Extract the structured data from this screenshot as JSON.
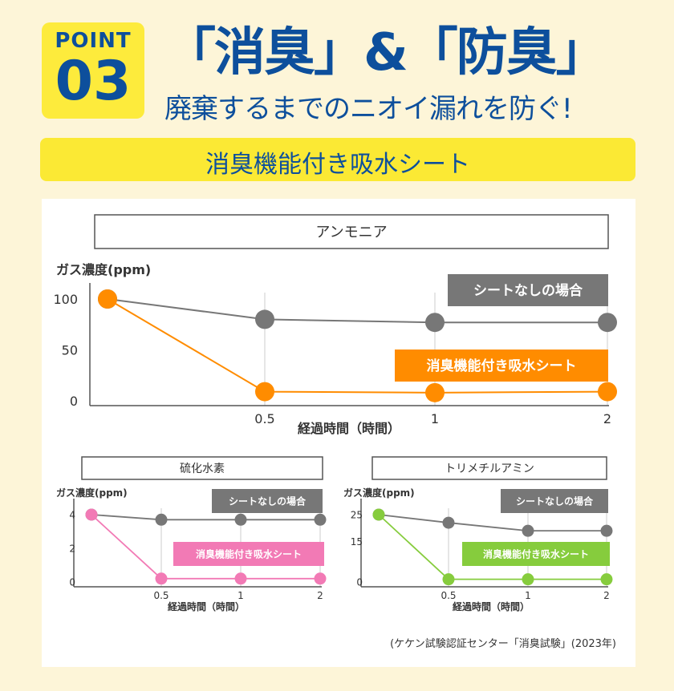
{
  "header": {
    "point_word": "POINT",
    "point_number": "03",
    "headline": "「消臭」&「防臭」",
    "subheadline": "廃棄するまでのニオイ漏れを防ぐ!",
    "banner": "消臭機能付き吸水シート"
  },
  "source_note": "(ケケン試験認証センター「消臭試験」(2023年)",
  "colors": {
    "brand_blue": "#0d4f9c",
    "banner_yellow": "#fbe934",
    "badge_yellow": "#fdeb3c",
    "gray_series": "#777777",
    "orange_series": "#ff8c00",
    "pink_series": "#f27ab5",
    "green_series": "#86cc3d"
  },
  "chart_data": [
    {
      "type": "line",
      "title": "アンモニア",
      "ylabel": "ガス濃度(ppm)",
      "xlabel": "経過時間（時間）",
      "x": [
        0,
        0.5,
        1,
        2
      ],
      "x_tick_labels": [
        "0.5",
        "1",
        "2"
      ],
      "y_ticks": [
        0,
        50,
        100
      ],
      "ylim": [
        0,
        100
      ],
      "grid": "vertical",
      "series": [
        {
          "name": "シートなしの場合",
          "values": [
            100,
            80,
            77,
            77
          ],
          "color": "#777777"
        },
        {
          "name": "消臭機能付き吸水シート",
          "values": [
            100,
            9,
            8,
            9
          ],
          "color": "#ff8c00"
        }
      ]
    },
    {
      "type": "line",
      "title": "硫化水素",
      "ylabel": "ガス濃度(ppm)",
      "xlabel": "経過時間（時間）",
      "x": [
        0,
        0.5,
        1,
        2
      ],
      "x_tick_labels": [
        "0.5",
        "1",
        "2"
      ],
      "y_ticks": [
        0,
        2,
        4
      ],
      "ylim": [
        0,
        4
      ],
      "grid": "vertical",
      "series": [
        {
          "name": "シートなしの場合",
          "values": [
            4,
            3.7,
            3.7,
            3.7
          ],
          "color": "#777777"
        },
        {
          "name": "消臭機能付き吸水シート",
          "values": [
            4,
            0.2,
            0.2,
            0.2
          ],
          "color": "#f27ab5"
        }
      ]
    },
    {
      "type": "line",
      "title": "トリメチルアミン",
      "ylabel": "ガス濃度(ppm)",
      "xlabel": "経過時間（時間）",
      "x": [
        0,
        0.5,
        1,
        2
      ],
      "x_tick_labels": [
        "0.5",
        "1",
        "2"
      ],
      "y_ticks": [
        0,
        15,
        25
      ],
      "ylim": [
        0,
        25
      ],
      "grid": "vertical",
      "series": [
        {
          "name": "シートなしの場合",
          "values": [
            25,
            22,
            19,
            19
          ],
          "color": "#777777"
        },
        {
          "name": "消臭機能付き吸水シート",
          "values": [
            25,
            1,
            1,
            1
          ],
          "color": "#86cc3d"
        }
      ]
    }
  ]
}
